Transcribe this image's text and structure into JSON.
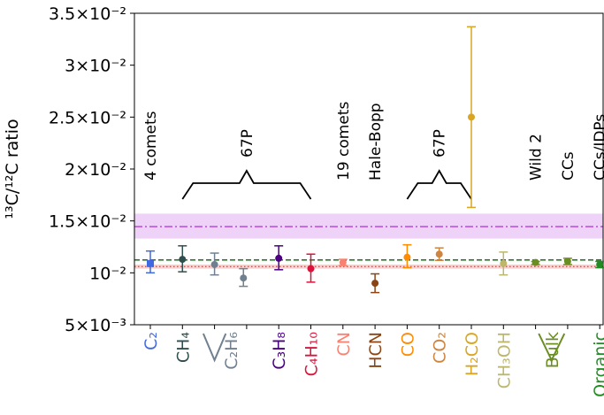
{
  "chart_data": {
    "type": "scatter",
    "ylabel": "¹³C/¹²C ratio",
    "ylim": [
      0.005,
      0.035
    ],
    "y_ticks": [
      {
        "value": 0.005,
        "label": "5×10⁻³"
      },
      {
        "value": 0.01,
        "label": "10⁻²"
      },
      {
        "value": 0.015,
        "label": "1.5×10⁻²"
      },
      {
        "value": 0.02,
        "label": "2×10⁻²"
      },
      {
        "value": 0.025,
        "label": "2.5×10⁻²"
      },
      {
        "value": 0.03,
        "label": "3×10⁻²"
      },
      {
        "value": 0.035,
        "label": "3.5×10⁻²"
      }
    ],
    "categories": [
      {
        "label": "C₂",
        "color": "#4169e1"
      },
      {
        "label": "CH₄",
        "color": "#2f4f4f"
      },
      {
        "label": "C₂H₆",
        "color": "#708090"
      },
      {
        "label": "C₃H₈",
        "color": "#4b0082"
      },
      {
        "label": "C₄H₁₀",
        "color": "#dc143c"
      },
      {
        "label": "CN",
        "color": "#fa8072"
      },
      {
        "label": "HCN",
        "color": "#8b4513"
      },
      {
        "label": "CO",
        "color": "#ff8c00"
      },
      {
        "label": "CO₂",
        "color": "#cd853f"
      },
      {
        "label": "H₂CO",
        "color": "#daa520"
      },
      {
        "label": "CH₃OH",
        "color": "#bdb76b"
      },
      {
        "label": "Bulk",
        "color": "#6b8e23"
      },
      {
        "label": "Organic",
        "color": "#228b22"
      }
    ],
    "points": [
      {
        "x": 1,
        "y": 0.0109,
        "ylo": 0.01,
        "yhi": 0.0121,
        "color": "#4169e1",
        "marker": "square"
      },
      {
        "x": 2,
        "y": 0.0113,
        "ylo": 0.0101,
        "yhi": 0.0126,
        "color": "#2f4f4f",
        "marker": "circle"
      },
      {
        "x": 3,
        "y": 0.0108,
        "ylo": 0.0098,
        "yhi": 0.0119,
        "color": "#708090",
        "marker": "circle"
      },
      {
        "x": 3.9,
        "y": 0.0095,
        "ylo": 0.0087,
        "yhi": 0.0104,
        "color": "#708090",
        "marker": "circle"
      },
      {
        "x": 5,
        "y": 0.0114,
        "ylo": 0.0103,
        "yhi": 0.0126,
        "color": "#4b0082",
        "marker": "circle"
      },
      {
        "x": 6,
        "y": 0.0104,
        "ylo": 0.0091,
        "yhi": 0.0118,
        "color": "#dc143c",
        "marker": "circle"
      },
      {
        "x": 7,
        "y": 0.011,
        "ylo": 0.0107,
        "yhi": 0.0113,
        "color": "#fa8072",
        "marker": "circle"
      },
      {
        "x": 8,
        "y": 0.009,
        "ylo": 0.0081,
        "yhi": 0.0099,
        "color": "#8b4513",
        "marker": "circle"
      },
      {
        "x": 9,
        "y": 0.0115,
        "ylo": 0.0105,
        "yhi": 0.0127,
        "color": "#ff8c00",
        "marker": "circle"
      },
      {
        "x": 10,
        "y": 0.0118,
        "ylo": 0.0112,
        "yhi": 0.0124,
        "color": "#cd853f",
        "marker": "circle"
      },
      {
        "x": 11,
        "y": 0.025,
        "ylo": 0.0163,
        "yhi": 0.0337,
        "color": "#daa520",
        "marker": "circle"
      },
      {
        "x": 12,
        "y": 0.0109,
        "ylo": 0.0098,
        "yhi": 0.012,
        "color": "#bdb76b",
        "marker": "circle"
      },
      {
        "x": 13,
        "y": 0.011,
        "ylo": 0.0108,
        "yhi": 0.0111,
        "color": "#6b8e23",
        "marker": "circle"
      },
      {
        "x": 14,
        "y": 0.0111,
        "ylo": 0.0108,
        "yhi": 0.0114,
        "color": "#6b8e23",
        "marker": "circle"
      },
      {
        "x": 15,
        "y": 0.0108,
        "ylo": 0.0105,
        "yhi": 0.0111,
        "color": "#228b22",
        "marker": "circle"
      }
    ],
    "reference_lines": [
      {
        "y": 0.01445,
        "band": [
          0.0133,
          0.0157
        ],
        "color": "#b44fd6",
        "band_color": "#eed2f7",
        "style": "dashdot"
      },
      {
        "y": 0.01124,
        "color": "#006400",
        "style": "dashed"
      },
      {
        "y": 0.0106,
        "band": [
          0.0104,
          0.0108
        ],
        "color": "#e74c3c",
        "band_color": "#f8d0d0",
        "style": "dotted"
      }
    ],
    "group_labels": [
      {
        "text": "4 comets",
        "x": 1
      },
      {
        "text": "67P",
        "x": 4.1,
        "brace": [
          2,
          6
        ]
      },
      {
        "text": "19 comets",
        "x": 7
      },
      {
        "text": "Hale-Bopp",
        "x": 8
      },
      {
        "text": "67P",
        "x": 10,
        "brace": [
          9,
          11
        ]
      },
      {
        "text": "Wild 2",
        "x": 13
      },
      {
        "text": "CCs",
        "x": 14
      },
      {
        "text": "CCs/IDPs",
        "x": 15
      }
    ]
  }
}
